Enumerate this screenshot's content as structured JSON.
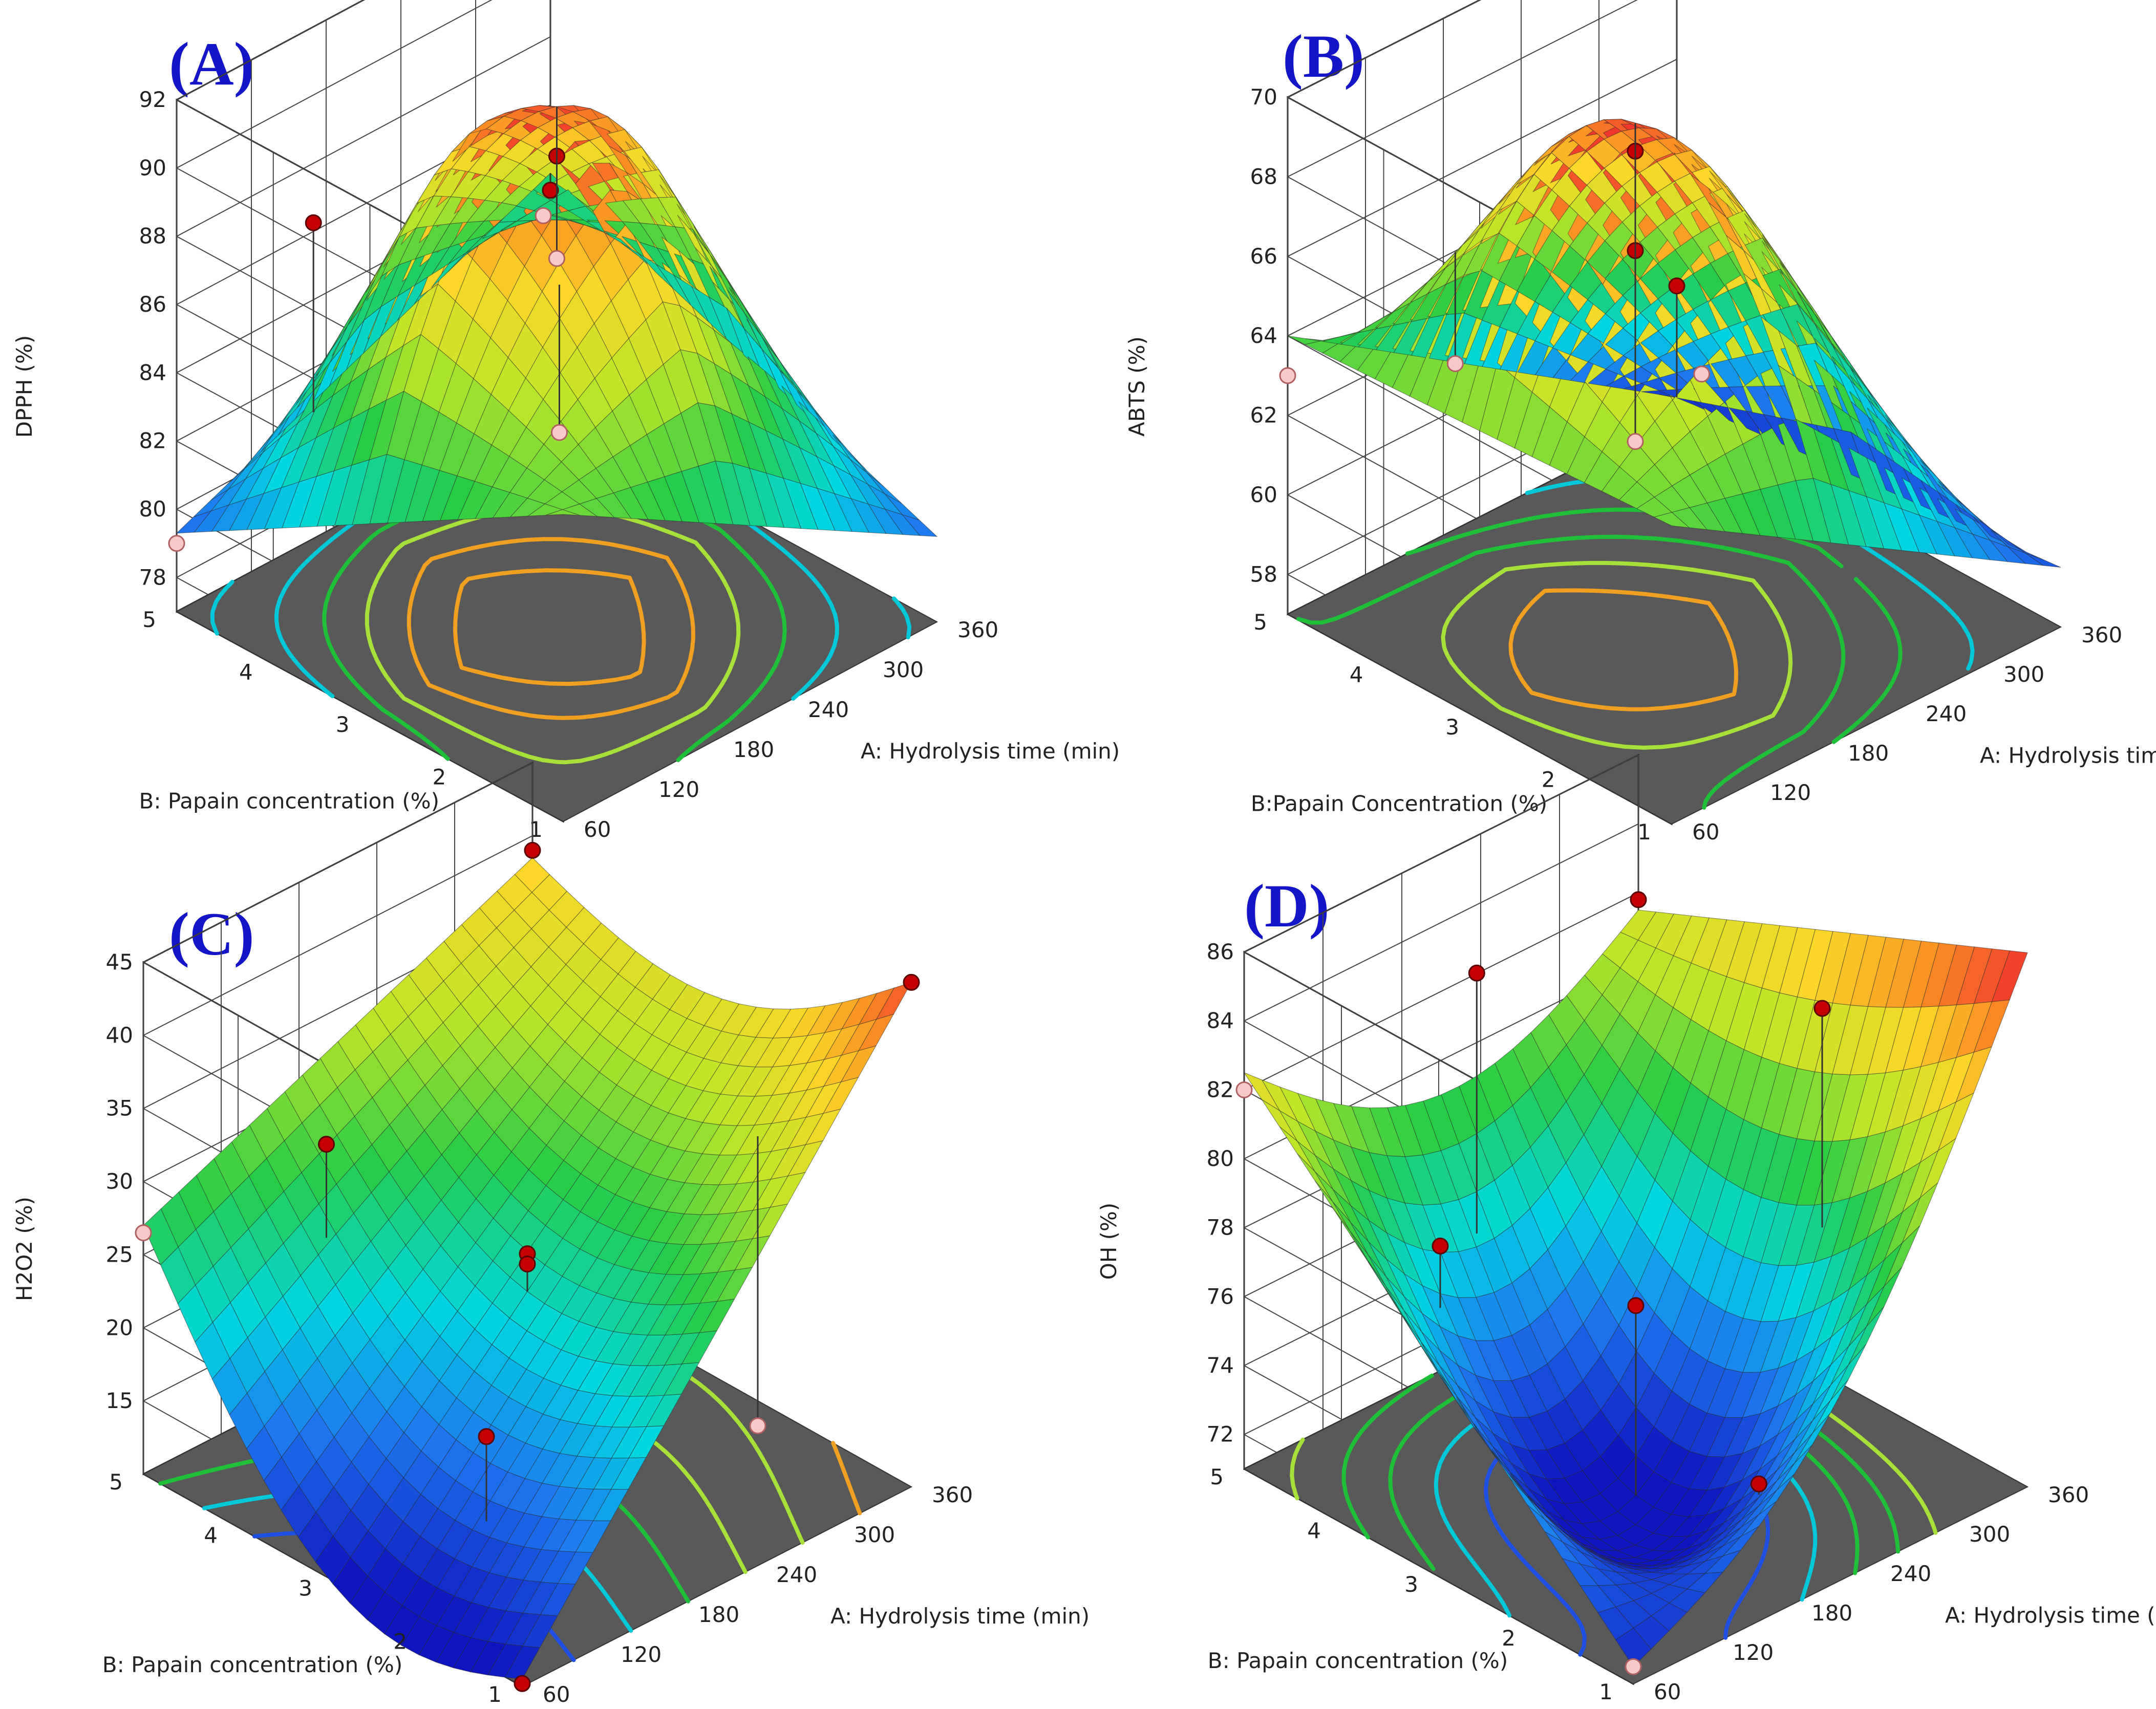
{
  "chart_data": [
    {
      "type": "surface3d",
      "panel": "(A)",
      "zlabel": "DPPH (%)",
      "xlabel": "A: Hydrolysis time (min)",
      "ylabel": "B: Papain concentration (%)",
      "x_ticks": [
        "60",
        "120",
        "180",
        "240",
        "300",
        "360"
      ],
      "y_ticks": [
        "1",
        "2",
        "3",
        "4",
        "5"
      ],
      "z_ticks": [
        "78",
        "80",
        "82",
        "84",
        "86",
        "88",
        "90",
        "92"
      ],
      "xlim": [
        60,
        360
      ],
      "ylim": [
        1,
        5
      ],
      "zlim": [
        77,
        92
      ],
      "surface_corners": {
        "x60_y1": 86.0,
        "x360_y1": 79.5,
        "x60_y5": 79.3,
        "x360_y5": 84.0
      },
      "peak": {
        "x": 200,
        "y": 3.0,
        "z": 92.0
      },
      "contour_levels": [
        80,
        82,
        84,
        86,
        88,
        90
      ],
      "points": [
        {
          "x": 60,
          "y": 5,
          "z": 79.0,
          "above": false
        },
        {
          "x": 360,
          "y": 5,
          "z": 83.5,
          "above": true
        },
        {
          "x": 210,
          "y": 3,
          "z": 90.5,
          "above": true
        },
        {
          "x": 210,
          "y": 3,
          "z": 87.5,
          "above": false
        },
        {
          "x": 100,
          "y": 4.1,
          "z": 89.0,
          "above": true
        },
        {
          "x": 150,
          "y": 2.2,
          "z": 84.8,
          "above": false
        },
        {
          "x": 300,
          "y": 4.3,
          "z": 85.0,
          "above": false
        }
      ]
    },
    {
      "type": "surface3d",
      "panel": "(B)",
      "zlabel": "ABTS (%)",
      "xlabel": "A: Hydrolysis time (min)",
      "ylabel": "B:Papain Concentration (%)",
      "x_ticks": [
        "60",
        "120",
        "180",
        "240",
        "300",
        "360"
      ],
      "y_ticks": [
        "1",
        "2",
        "3",
        "4",
        "5"
      ],
      "z_ticks": [
        "58",
        "60",
        "62",
        "64",
        "66",
        "68",
        "70"
      ],
      "xlim": [
        60,
        360
      ],
      "ylim": [
        1,
        5
      ],
      "zlim": [
        57,
        70
      ],
      "surface_corners": {
        "x60_y1": 64.5,
        "x360_y1": 58.5,
        "x60_y5": 64.0,
        "x360_y5": 57.5
      },
      "peak": {
        "x": 180,
        "y": 3.0,
        "z": 70.0
      },
      "contour_levels": [
        58,
        60,
        62,
        64,
        66,
        68
      ],
      "points": [
        {
          "x": 60,
          "y": 5,
          "z": 63.0,
          "above": false
        },
        {
          "x": 360,
          "y": 5,
          "z": 60.3,
          "above": true
        },
        {
          "x": 180,
          "y": 3,
          "z": 69.3,
          "above": true
        },
        {
          "x": 180,
          "y": 3,
          "z": 66.8,
          "above": true
        },
        {
          "x": 180,
          "y": 3,
          "z": 62.0,
          "above": false
        },
        {
          "x": 130,
          "y": 4.2,
          "z": 63.2,
          "above": false
        },
        {
          "x": 320,
          "y": 4.2,
          "z": 59.8,
          "above": false
        }
      ]
    },
    {
      "type": "surface3d",
      "panel": "(C)",
      "zlabel": "H2O2 (%)",
      "xlabel": "A: Hydrolysis time (min)",
      "ylabel": "B: Papain concentration (%)",
      "x_ticks": [
        "60",
        "120",
        "180",
        "240",
        "300",
        "360"
      ],
      "y_ticks": [
        "1",
        "2",
        "3",
        "4",
        "5"
      ],
      "z_ticks": [
        "15",
        "20",
        "25",
        "30",
        "35",
        "40",
        "45"
      ],
      "xlim": [
        60,
        360
      ],
      "ylim": [
        1,
        5
      ],
      "zlim": [
        10,
        45
      ],
      "surface_corners": {
        "x60_y1": 10.5,
        "x360_y1": 44.5,
        "x60_y5": 27.0,
        "x360_y5": 38.5
      },
      "peak": null,
      "contour_levels": [
        15,
        20,
        25,
        30,
        35,
        40
      ],
      "points": [
        {
          "x": 60,
          "y": 1,
          "z": 10.2,
          "above": true
        },
        {
          "x": 360,
          "y": 1,
          "z": 44.5,
          "above": true
        },
        {
          "x": 60,
          "y": 5,
          "z": 26.5,
          "above": false
        },
        {
          "x": 360,
          "y": 5,
          "z": 39.0,
          "above": true
        },
        {
          "x": 210,
          "y": 3,
          "z": 25.5,
          "above": true
        },
        {
          "x": 210,
          "y": 3,
          "z": 24.8,
          "above": true
        },
        {
          "x": 150,
          "y": 4.3,
          "z": 31.0,
          "above": true
        },
        {
          "x": 120,
          "y": 2.2,
          "z": 20.0,
          "above": true
        },
        {
          "x": 300,
          "y": 1.8,
          "z": 14.0,
          "above": false
        }
      ]
    },
    {
      "type": "surface3d",
      "panel": "(D)",
      "zlabel": "OH (%)",
      "xlabel": "A: Hydrolysis time (min)",
      "ylabel": "B: Papain concentration (%)",
      "x_ticks": [
        "60",
        "120",
        "180",
        "240",
        "300",
        "360"
      ],
      "y_ticks": [
        "1",
        "2",
        "3",
        "4",
        "5"
      ],
      "z_ticks": [
        "72",
        "74",
        "76",
        "78",
        "80",
        "82",
        "84",
        "86"
      ],
      "xlim": [
        60,
        360
      ],
      "ylim": [
        1,
        5
      ],
      "zlim": [
        71,
        86
      ],
      "surface_corners": {
        "x60_y1": 71.5,
        "x360_y1": 86.5,
        "x60_y5": 82.5,
        "x360_y5": 81.5
      },
      "peak": null,
      "contour_levels": [
        73,
        75,
        77,
        79,
        81
      ],
      "points": [
        {
          "x": 60,
          "y": 1,
          "z": 71.5,
          "above": false
        },
        {
          "x": 60,
          "y": 5,
          "z": 82.0,
          "above": false
        },
        {
          "x": 360,
          "y": 5,
          "z": 81.8,
          "above": true
        },
        {
          "x": 210,
          "y": 3,
          "z": 76.0,
          "above": true
        },
        {
          "x": 150,
          "y": 4.2,
          "z": 77.0,
          "above": true
        },
        {
          "x": 200,
          "y": 4.5,
          "z": 83.5,
          "above": true
        },
        {
          "x": 300,
          "y": 2.3,
          "z": 84.0,
          "above": true
        },
        {
          "x": 200,
          "y": 1.6,
          "z": 73.2,
          "above": true
        }
      ]
    }
  ]
}
